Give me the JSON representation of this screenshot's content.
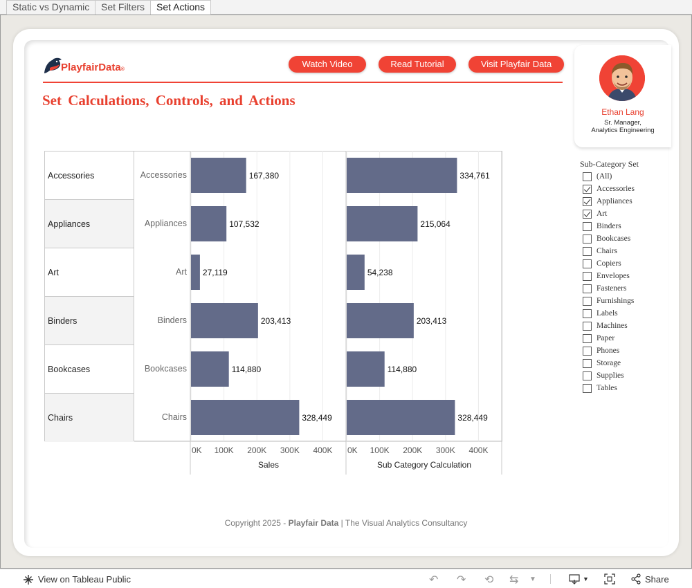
{
  "tabs": [
    {
      "label": "Static vs Dynamic",
      "active": false
    },
    {
      "label": "Set Filters",
      "active": false
    },
    {
      "label": "Set Actions",
      "active": true
    }
  ],
  "header": {
    "logo_text": "PlayfairData",
    "logo_reg": "®",
    "buttons": [
      "Watch Video",
      "Read Tutorial",
      "Visit Playfair Data"
    ],
    "title": "Set Calculations, Controls, and Actions"
  },
  "profile": {
    "name": "Ethan Lang",
    "role_line1": "Sr. Manager,",
    "role_line2": "Analytics Engineering"
  },
  "table": {
    "rows": [
      "Accessories",
      "Appliances",
      "Art",
      "Binders",
      "Bookcases",
      "Chairs"
    ]
  },
  "chart_data": {
    "type": "bar",
    "orientation": "horizontal",
    "categories": [
      "Accessories",
      "Appliances",
      "Art",
      "Binders",
      "Bookcases",
      "Chairs"
    ],
    "series": [
      {
        "name": "Sales",
        "values": [
          167380,
          107532,
          27119,
          203413,
          114880,
          328449
        ],
        "labels": [
          "167,380",
          "107,532",
          "27,119",
          "203,413",
          "114,880",
          "328,449"
        ]
      },
      {
        "name": "Sub Category Calculation",
        "values": [
          334761,
          215064,
          54238,
          203413,
          114880,
          328449
        ],
        "labels": [
          "334,761",
          "215,064",
          "54,238",
          "203,413",
          "114,880",
          "328,449"
        ]
      }
    ],
    "xticks": [
      "0K",
      "100K",
      "200K",
      "300K",
      "400K"
    ],
    "xlim": [
      0,
      420000
    ],
    "bar_color": "#636b89",
    "grid": true
  },
  "filter": {
    "title": "Sub-Category Set",
    "items": [
      {
        "label": "(All)",
        "checked": false
      },
      {
        "label": "Accessories",
        "checked": true
      },
      {
        "label": "Appliances",
        "checked": true
      },
      {
        "label": "Art",
        "checked": true
      },
      {
        "label": "Binders",
        "checked": false
      },
      {
        "label": "Bookcases",
        "checked": false
      },
      {
        "label": "Chairs",
        "checked": false
      },
      {
        "label": "Copiers",
        "checked": false
      },
      {
        "label": "Envelopes",
        "checked": false
      },
      {
        "label": "Fasteners",
        "checked": false
      },
      {
        "label": "Furnishings",
        "checked": false
      },
      {
        "label": "Labels",
        "checked": false
      },
      {
        "label": "Machines",
        "checked": false
      },
      {
        "label": "Paper",
        "checked": false
      },
      {
        "label": "Phones",
        "checked": false
      },
      {
        "label": "Storage",
        "checked": false
      },
      {
        "label": "Supplies",
        "checked": false
      },
      {
        "label": "Tables",
        "checked": false
      }
    ]
  },
  "footer": {
    "copyright_pre": "Copyright 2025 - ",
    "copyright_brand": "Playfair Data",
    "copyright_post": " | The Visual Analytics Consultancy"
  },
  "toolbar": {
    "view_label": "View on Tableau Public",
    "share_label": "Share"
  },
  "colors": {
    "accent": "#f04335",
    "bar": "#636b89"
  }
}
